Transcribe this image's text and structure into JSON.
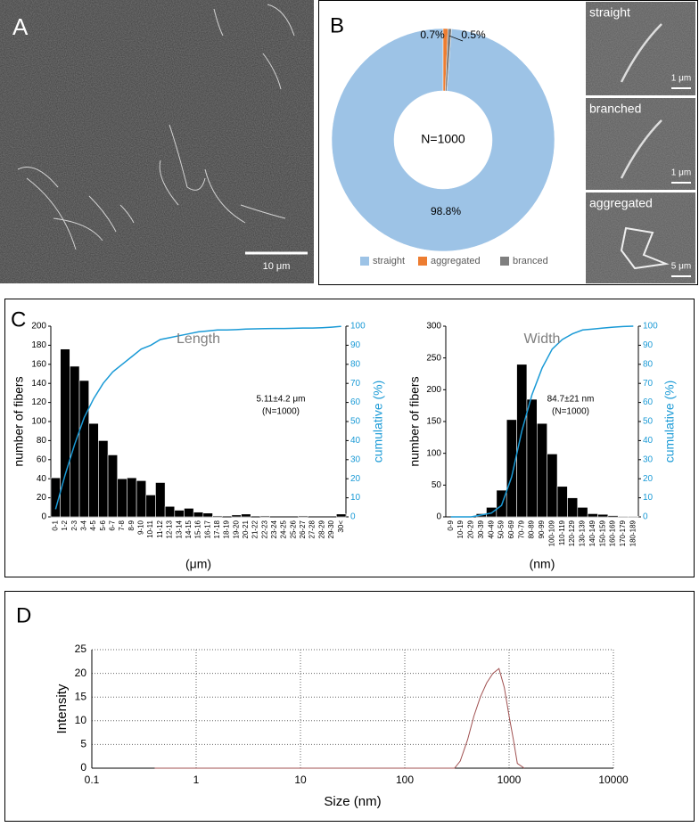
{
  "panels": {
    "a": {
      "label": "A",
      "scale_bar": "10 μm"
    },
    "b": {
      "label": "B",
      "micrographs": [
        {
          "label": "straight",
          "scale_bar": "1 μm"
        },
        {
          "label": "branched",
          "scale_bar": "1 μm"
        },
        {
          "label": "aggregated",
          "scale_bar": "5 μm"
        }
      ]
    },
    "c": {
      "label": "C"
    },
    "d": {
      "label": "D"
    }
  },
  "chart_data": [
    {
      "type": "pie",
      "center_label": "N=1000",
      "categories": [
        "straight",
        "aggregated",
        "branced"
      ],
      "values": [
        98.8,
        0.7,
        0.5
      ],
      "value_labels": [
        "98.8%",
        "0.7%",
        "0.5%"
      ],
      "colors": [
        "#9dc3e6",
        "#ed7d31",
        "#7f7f7f"
      ],
      "legend": "bottom"
    },
    {
      "type": "bar",
      "title": "Length",
      "xlabel": "(μm)",
      "ylabel": "number of fibers",
      "y2label": "cumulative (%)",
      "annotations": [
        "5.11±4.2 μm",
        "(N=1000)"
      ],
      "categories": [
        "0-1",
        "1-2",
        "2-3",
        "3-4",
        "4-5",
        "5-6",
        "6-7",
        "7-8",
        "8-9",
        "9-10",
        "10-11",
        "11-12",
        "12-13",
        "13-14",
        "14-15",
        "15-16",
        "16-17",
        "17-18",
        "18-19",
        "19-20",
        "20-21",
        "21-22",
        "22-23",
        "23-24",
        "24-25",
        "25-26",
        "26-27",
        "27-28",
        "28-29",
        "29-30",
        "30<"
      ],
      "series": [
        {
          "color": "#000000",
          "values": [
            41,
            176,
            158,
            143,
            98,
            80,
            65,
            40,
            41,
            38,
            23,
            36,
            11,
            7,
            9,
            5,
            4,
            1,
            0,
            2,
            3,
            0,
            1,
            0,
            0,
            0,
            1,
            0,
            0,
            0,
            3
          ]
        },
        {
          "color": "#1a9ad6",
          "axis": "y2",
          "values": [
            4,
            22,
            38,
            52,
            62,
            70,
            76,
            80,
            84,
            88,
            90,
            93,
            94,
            95,
            96,
            97,
            97.5,
            98,
            98,
            98.2,
            98.5,
            98.6,
            98.7,
            98.8,
            98.8,
            98.9,
            99,
            99,
            99.2,
            99.5,
            99.9
          ]
        }
      ],
      "ylim": [
        0,
        200
      ],
      "yticks": [
        0,
        20,
        40,
        60,
        80,
        100,
        120,
        140,
        160,
        180,
        200
      ],
      "y2lim": [
        0,
        100
      ],
      "y2ticks": [
        0,
        10,
        20,
        30,
        40,
        50,
        60,
        70,
        80,
        90,
        100
      ]
    },
    {
      "type": "bar",
      "title": "Width",
      "xlabel": "(nm)",
      "ylabel": "number of fibers",
      "y2label": "cumulative (%)",
      "annotations": [
        "84.7±21 nm",
        "(N=1000)"
      ],
      "categories": [
        "0-9",
        "10-19",
        "20-29",
        "30-39",
        "40-49",
        "50-59",
        "60-69",
        "70-79",
        "80-89",
        "90-99",
        "100-109",
        "110-119",
        "120-129",
        "130-139",
        "140-149",
        "150-159",
        "160-169",
        "170-179",
        "180-189"
      ],
      "series": [
        {
          "color": "#000000",
          "values": [
            0,
            0,
            0,
            5,
            15,
            42,
            153,
            240,
            185,
            147,
            99,
            48,
            30,
            15,
            5,
            4,
            2,
            1,
            1
          ]
        },
        {
          "color": "#1a9ad6",
          "axis": "y2",
          "values": [
            0,
            0,
            0,
            1,
            2,
            6,
            21,
            45,
            64,
            78,
            88,
            93,
            96,
            98,
            98.5,
            99,
            99.5,
            99.8,
            100
          ]
        }
      ],
      "ylim": [
        0,
        300
      ],
      "yticks": [
        0,
        50,
        100,
        150,
        200,
        250,
        300
      ],
      "y2lim": [
        0,
        100
      ],
      "y2ticks": [
        0,
        10,
        20,
        30,
        40,
        50,
        60,
        70,
        80,
        90,
        100
      ]
    },
    {
      "type": "line",
      "xlabel": "Size (nm)",
      "ylabel": "Intensity",
      "xscale": "log",
      "grid": true,
      "x": [
        0.4,
        300,
        340,
        400,
        460,
        530,
        610,
        700,
        800,
        900,
        1000,
        1100,
        1200,
        1400
      ],
      "series": [
        {
          "color": "#a05050",
          "values": [
            0,
            0,
            1.5,
            6,
            11,
            15,
            18,
            20,
            21,
            17,
            11,
            6,
            1,
            0
          ]
        }
      ],
      "xlim": [
        0.1,
        10000
      ],
      "xticks": [
        0.1,
        1,
        10,
        100,
        1000,
        10000
      ],
      "ylim": [
        0,
        25
      ],
      "yticks": [
        0,
        5,
        10,
        15,
        20,
        25
      ]
    }
  ]
}
